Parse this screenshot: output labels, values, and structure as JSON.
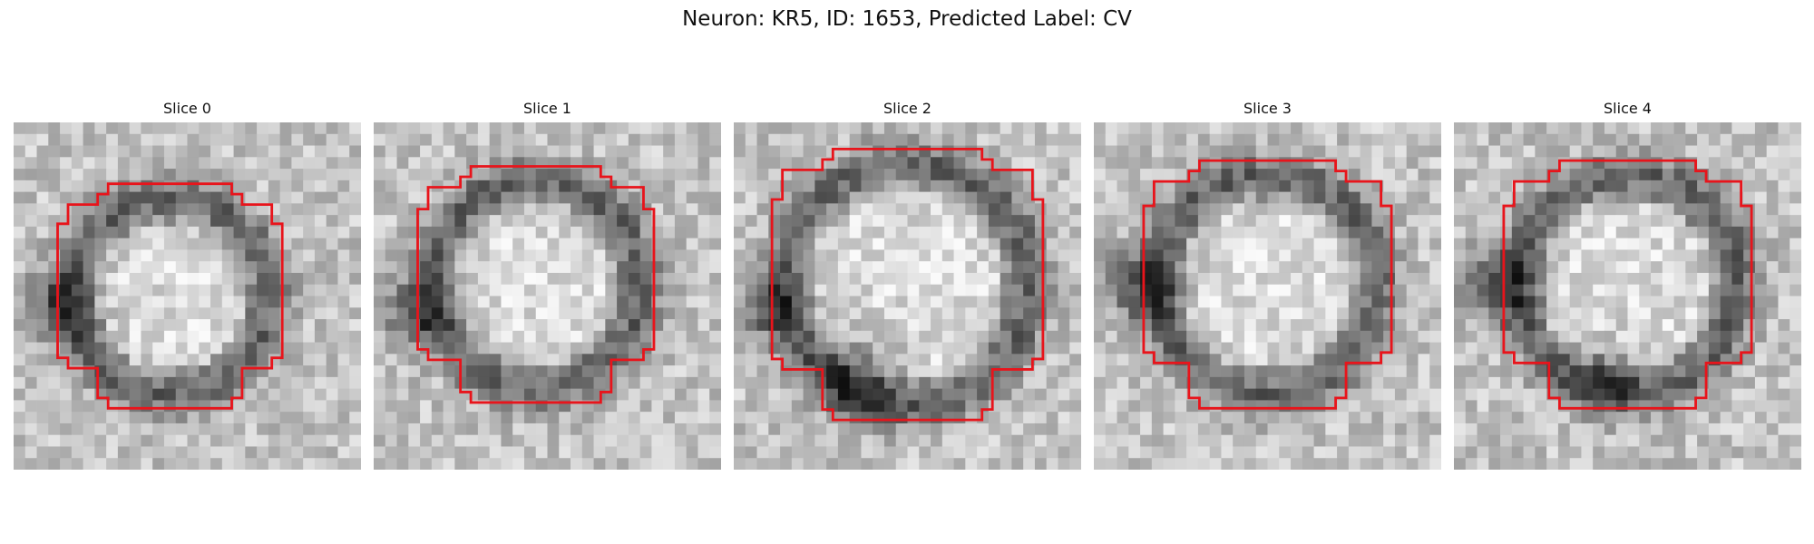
{
  "figure": {
    "title": "Neuron: KR5, ID: 1653, Predicted Label: CV"
  },
  "panels": [
    {
      "title": "Slice 0",
      "seed": 11,
      "cx": 13.5,
      "cy": 15,
      "r": 8.5,
      "dark": [
        [
          4,
          16,
          2.2
        ]
      ]
    },
    {
      "title": "Slice 1",
      "seed": 23,
      "cx": 14,
      "cy": 14,
      "r": 9,
      "dark": [
        [
          3.5,
          16.5,
          2
        ]
      ]
    },
    {
      "title": "Slice 2",
      "seed": 37,
      "cx": 15,
      "cy": 14,
      "r": 10.5,
      "dark": [
        [
          11,
          22,
          2.5
        ],
        [
          3,
          16,
          2
        ]
      ]
    },
    {
      "title": "Slice 3",
      "seed": 51,
      "cx": 15,
      "cy": 14,
      "r": 9.5,
      "dark": [
        [
          4,
          14,
          2.2
        ]
      ]
    },
    {
      "title": "Slice 4",
      "seed": 67,
      "cx": 15,
      "cy": 14,
      "r": 9.5,
      "dark": [
        [
          3.5,
          14,
          2.2
        ],
        [
          13,
          22,
          2
        ]
      ]
    }
  ],
  "colors": {
    "contour": "#e8141b"
  }
}
